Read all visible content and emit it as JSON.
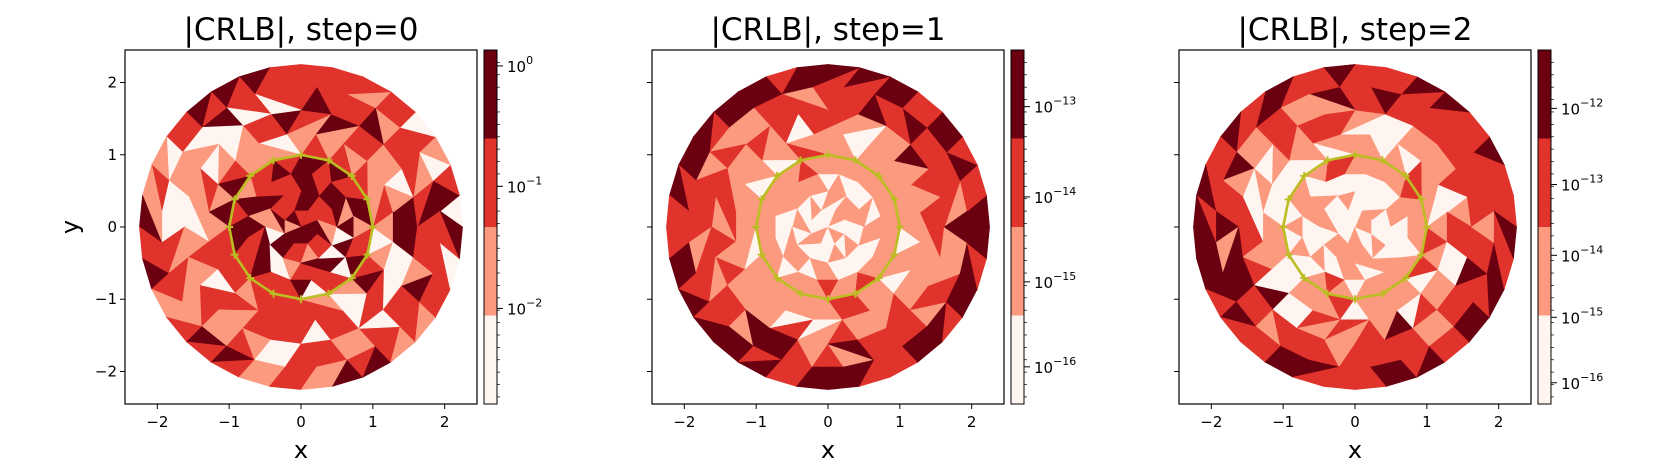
{
  "colors": {
    "levels": [
      "#fff5f0",
      "#fb9a7e",
      "#e0332b",
      "#6a0010"
    ],
    "contour": "#bcbd22"
  },
  "chart_data": [
    {
      "type": "heatmap",
      "title": "|CRLB|, step=0",
      "xlabel": "x",
      "ylabel": "y",
      "xlim": [
        -2.45,
        2.45
      ],
      "ylim": [
        -2.45,
        2.45
      ],
      "xticks": [
        "−2",
        "−1",
        "0",
        "1",
        "2"
      ],
      "yticks": [
        "−2",
        "−1",
        "0",
        "1",
        "2"
      ],
      "grid": false,
      "domain": "disk of radius 2.25 centered at (0,0), triangulated mesh",
      "inner_region": "unit circle marked by 16 '+' points",
      "colorbar": {
        "scale": "log",
        "levels_boundaries": [
          0.0012,
          0.012,
          0.12,
          1.6
        ],
        "tick_mantissa": [
          "10",
          "10",
          "10"
        ],
        "tick_exponents": [
          "0",
          "−1",
          "−2"
        ],
        "tick_values": [
          1,
          0.1,
          0.01
        ]
      }
    },
    {
      "type": "heatmap",
      "title": "|CRLB|, step=1",
      "xlabel": "x",
      "ylabel": "",
      "xlim": [
        -2.45,
        2.45
      ],
      "ylim": [
        -2.45,
        2.45
      ],
      "xticks": [
        "−2",
        "−1",
        "0",
        "1",
        "2"
      ],
      "grid": false,
      "domain": "disk of radius 2.25 centered at (0,0), triangulated mesh",
      "inner_region": "unit circle marked by 16 '+' points",
      "colorbar": {
        "scale": "log",
        "levels_boundaries": [
          3.2e-17,
          3.6e-16,
          3.6e-15,
          4e-14,
          5e-13
        ],
        "tick_mantissa": [
          "10",
          "10",
          "10",
          "10"
        ],
        "tick_exponents": [
          "−13",
          "−14",
          "−15",
          "−16"
        ],
        "tick_values": [
          1e-13,
          1e-14,
          1e-15,
          1e-16
        ]
      }
    },
    {
      "type": "heatmap",
      "title": "|CRLB|, step=2",
      "xlabel": "x",
      "ylabel": "",
      "xlim": [
        -2.45,
        2.45
      ],
      "ylim": [
        -2.45,
        2.45
      ],
      "xticks": [
        "−2",
        "−1",
        "0",
        "1",
        "2"
      ],
      "grid": false,
      "domain": "disk of radius 2.25 centered at (0,0), triangulated mesh",
      "inner_region": "unit circle marked by 16 '+' points",
      "colorbar": {
        "scale": "log",
        "levels_boundaries": [
          5e-17,
          1e-15,
          1e-14,
          1e-13,
          5e-12
        ],
        "tick_mantissa": [
          "10",
          "10",
          "10",
          "10",
          "10"
        ],
        "tick_exponents": [
          "−12",
          "−13",
          "−14",
          "−15",
          "−16"
        ],
        "tick_values": [
          1e-12,
          1e-13,
          1e-14,
          1e-15,
          1e-16
        ]
      }
    }
  ]
}
